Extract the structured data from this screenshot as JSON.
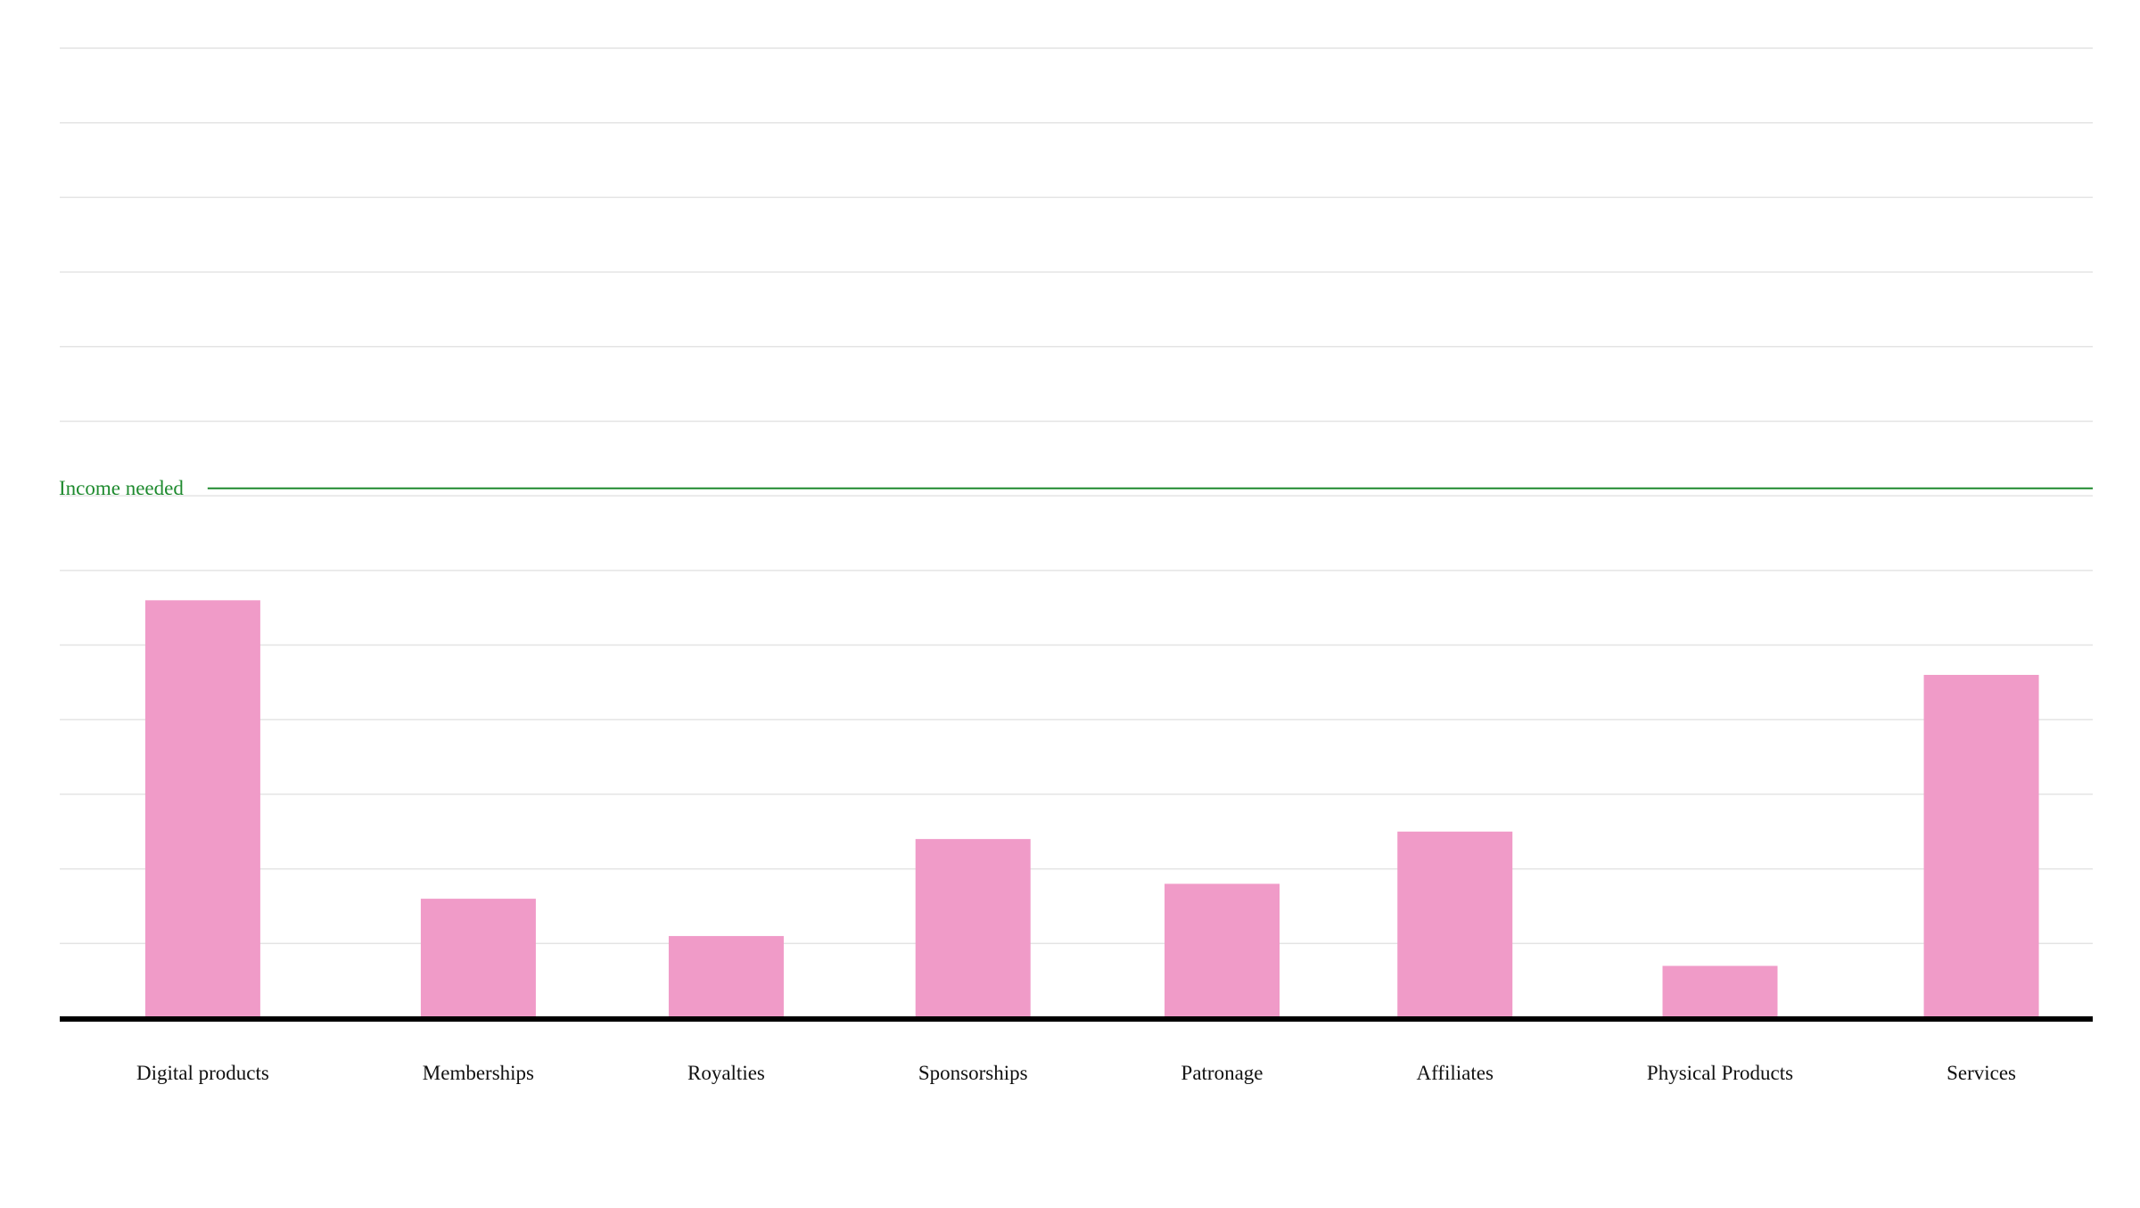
{
  "chart_data": {
    "type": "bar",
    "categories": [
      "Digital products",
      "Memberships",
      "Royalties",
      "Sponsorships",
      "Patronage",
      "Affiliates",
      "Physical Products",
      "Services"
    ],
    "values": [
      5.6,
      1.6,
      1.1,
      2.4,
      1.8,
      2.5,
      0.7,
      4.6
    ],
    "color": "#f09bc8",
    "ylim": [
      0,
      13
    ],
    "yticks": [
      1,
      2,
      3,
      4,
      5,
      6,
      7,
      8,
      9,
      10,
      11,
      12,
      13
    ],
    "grid": true,
    "annotation": {
      "label": "Income needed",
      "value": 7.1,
      "color": "#1e8a2e"
    }
  }
}
